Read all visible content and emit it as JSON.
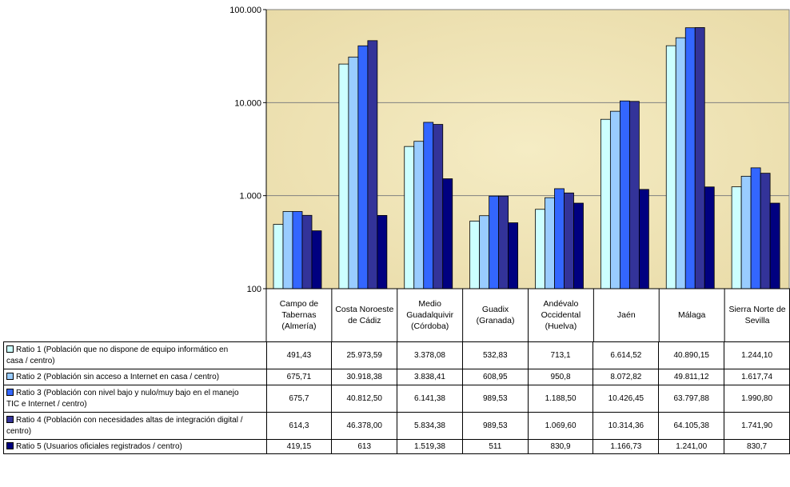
{
  "chart_data": {
    "type": "bar",
    "scale": "log",
    "ylim": [
      100,
      100000
    ],
    "yticks": [
      {
        "value": 100,
        "label": "100"
      },
      {
        "value": 1000,
        "label": "1.000"
      },
      {
        "value": 10000,
        "label": "10.000"
      },
      {
        "value": 100000,
        "label": "100.000"
      }
    ],
    "grid": true,
    "categories": [
      "Campo de Tabernas (Almería)",
      "Costa Noroeste de Cádiz",
      "Medio Guadalquivir (Córdoba)",
      "Guadix (Granada)",
      "Andévalo Occidental (Huelva)",
      "Jaén",
      "Málaga",
      "Sierra Norte de Sevilla"
    ],
    "category_lines": [
      [
        "Campo de",
        "Tabernas",
        "(Almería)"
      ],
      [
        "Costa Noroeste",
        "de Cádiz"
      ],
      [
        "Medio",
        "Guadalquivir",
        "(Córdoba)"
      ],
      [
        "Guadix",
        "(Granada)"
      ],
      [
        "Andévalo",
        "Occidental",
        "(Huelva)"
      ],
      [
        "Jaén"
      ],
      [
        "Málaga"
      ],
      [
        "Sierra Norte de",
        "Sevilla"
      ]
    ],
    "series": [
      {
        "name": "Ratio 1 (Población que no dispone de equipo informático en casa / centro)",
        "name_lines": [
          "Ratio 1 (Población que no dispone de equipo informático en",
          "casa / centro)"
        ],
        "color": "#ccffff",
        "values": [
          491.43,
          25973.59,
          3378.08,
          532.83,
          713.1,
          6614.52,
          40890.15,
          1244.1
        ],
        "labels": [
          "491,43",
          "25.973,59",
          "3.378,08",
          "532,83",
          "713,1",
          "6.614,52",
          "40.890,15",
          "1.244,10"
        ]
      },
      {
        "name": "Ratio 2 (Población sin acceso a Internet en casa / centro)",
        "name_lines": [
          "Ratio 2 (Población sin acceso a Internet en casa / centro)"
        ],
        "color": "#99ccff",
        "values": [
          675.71,
          30918.38,
          3838.41,
          608.95,
          950.8,
          8072.82,
          49811.12,
          1617.74
        ],
        "labels": [
          "675,71",
          "30.918,38",
          "3.838,41",
          "608,95",
          "950,8",
          "8.072,82",
          "49.811,12",
          "1.617,74"
        ]
      },
      {
        "name": "Ratio 3 (Población con nivel bajo y nulo/muy bajo en el manejo TIC e Internet / centro)",
        "name_lines": [
          "Ratio 3 (Población con nivel bajo y nulo/muy bajo en el manejo",
          "TIC e Internet / centro)"
        ],
        "color": "#3366ff",
        "values": [
          675.7,
          40812.5,
          6141.38,
          989.53,
          1188.5,
          10426.45,
          63797.88,
          1990.8
        ],
        "labels": [
          "675,7",
          "40.812,50",
          "6.141,38",
          "989,53",
          "1.188,50",
          "10.426,45",
          "63.797,88",
          "1.990,80"
        ]
      },
      {
        "name": "Ratio 4 (Población con necesidades altas de integración digital / centro)",
        "name_lines": [
          "Ratio 4 (Población con necesidades altas de integración digital /",
          "centro)"
        ],
        "color": "#333399",
        "values": [
          614.3,
          46378.0,
          5834.38,
          989.53,
          1069.6,
          10314.36,
          64105.38,
          1741.9
        ],
        "labels": [
          "614,3",
          "46.378,00",
          "5.834,38",
          "989,53",
          "1.069,60",
          "10.314,36",
          "64.105,38",
          "1.741,90"
        ]
      },
      {
        "name": "Ratio 5 (Usuarios oficiales registrados / centro)",
        "name_lines": [
          "Ratio 5 (Usuarios oficiales registrados / centro)"
        ],
        "color": "#000080",
        "values": [
          419.15,
          613,
          1519.38,
          511,
          830.9,
          1166.73,
          1241.0,
          830.7
        ],
        "labels": [
          "419,15",
          "613",
          "1.519,38",
          "511",
          "830,9",
          "1.166,73",
          "1.241,00",
          "830,7"
        ]
      }
    ],
    "plot_background": "#f5ecc4",
    "plot_background_edge": "#e9dba8"
  }
}
